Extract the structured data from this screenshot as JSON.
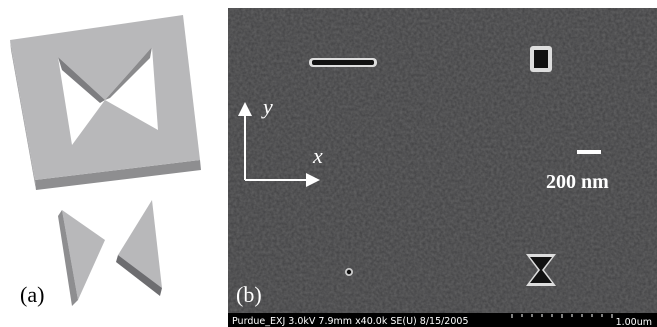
{
  "panel_a": {
    "label": "(a)"
  },
  "panel_b": {
    "label": "(b)",
    "axis_x": "x",
    "axis_y": "y",
    "scale_bar": "200 nm",
    "footer": {
      "info": "Purdue_EXJ 3.0kV 7.9mm x40.0k SE(U) 8/15/2005",
      "scale": "1.00um"
    }
  }
}
